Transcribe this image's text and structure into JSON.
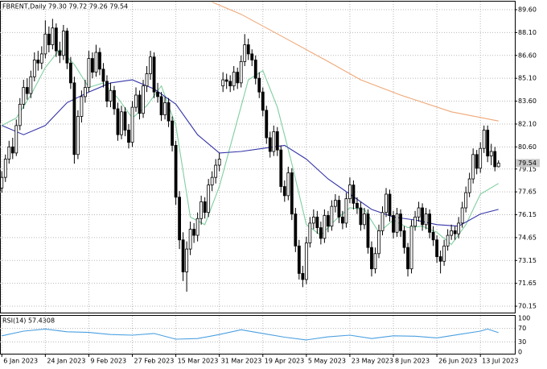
{
  "chart_data": {
    "type": "candlestick",
    "title": "FBRENT,Daily  79.30 79.72 79.26 79.54",
    "ohlc": [
      [
        77.9,
        79.0,
        77.6,
        78.6
      ],
      [
        78.6,
        80.1,
        78.3,
        79.8
      ],
      [
        79.8,
        81.0,
        79.5,
        80.6
      ],
      [
        80.6,
        81.2,
        79.8,
        80.2
      ],
      [
        80.2,
        82.4,
        80.0,
        82.0
      ],
      [
        82.0,
        83.8,
        81.7,
        83.4
      ],
      [
        83.4,
        85.0,
        83.1,
        84.5
      ],
      [
        84.5,
        85.1,
        83.7,
        84.1
      ],
      [
        84.1,
        85.6,
        83.8,
        85.2
      ],
      [
        85.2,
        86.8,
        84.9,
        86.3
      ],
      [
        86.3,
        86.9,
        85.6,
        86.1
      ],
      [
        86.1,
        87.2,
        85.7,
        86.7
      ],
      [
        86.7,
        88.9,
        86.4,
        88.0
      ],
      [
        88.0,
        88.5,
        86.8,
        87.3
      ],
      [
        87.3,
        89.0,
        87.0,
        88.4
      ],
      [
        88.4,
        88.7,
        86.5,
        86.9
      ],
      [
        86.9,
        87.5,
        86.1,
        86.6
      ],
      [
        86.6,
        88.6,
        86.3,
        88.2
      ],
      [
        88.2,
        88.4,
        85.7,
        86.1
      ],
      [
        86.1,
        86.5,
        84.4,
        84.8
      ],
      [
        84.8,
        85.2,
        79.5,
        80.1
      ],
      [
        80.1,
        83.0,
        79.8,
        82.6
      ],
      [
        82.6,
        84.3,
        82.2,
        83.9
      ],
      [
        83.9,
        85.0,
        83.5,
        84.5
      ],
      [
        84.5,
        86.9,
        84.2,
        86.4
      ],
      [
        86.4,
        86.8,
        85.1,
        85.5
      ],
      [
        85.5,
        87.3,
        85.2,
        86.8
      ],
      [
        86.8,
        87.1,
        85.3,
        85.7
      ],
      [
        85.7,
        86.1,
        84.5,
        84.9
      ],
      [
        84.9,
        85.3,
        83.2,
        83.6
      ],
      [
        83.6,
        84.8,
        83.2,
        84.3
      ],
      [
        84.3,
        84.6,
        82.7,
        83.1
      ],
      [
        83.1,
        83.5,
        81.0,
        81.4
      ],
      [
        81.4,
        83.3,
        81.1,
        82.9
      ],
      [
        82.9,
        83.2,
        81.3,
        81.7
      ],
      [
        81.7,
        82.1,
        80.5,
        80.9
      ],
      [
        80.9,
        83.6,
        80.6,
        83.2
      ],
      [
        83.2,
        84.5,
        82.9,
        84.0
      ],
      [
        84.0,
        84.3,
        82.4,
        82.8
      ],
      [
        82.8,
        85.0,
        82.5,
        84.6
      ],
      [
        84.6,
        85.9,
        84.2,
        85.4
      ],
      [
        85.4,
        86.9,
        85.0,
        86.5
      ],
      [
        86.5,
        86.8,
        83.8,
        84.2
      ],
      [
        84.2,
        84.8,
        83.5,
        83.9
      ],
      [
        83.9,
        84.2,
        82.3,
        82.7
      ],
      [
        82.7,
        83.9,
        82.4,
        83.5
      ],
      [
        83.5,
        83.8,
        81.9,
        82.3
      ],
      [
        82.3,
        82.6,
        80.3,
        80.7
      ],
      [
        80.7,
        81.0,
        76.8,
        77.3
      ],
      [
        77.3,
        77.7,
        73.9,
        74.5
      ],
      [
        74.5,
        75.0,
        71.8,
        72.4
      ],
      [
        72.4,
        74.4,
        71.1,
        73.9
      ],
      [
        73.9,
        75.7,
        73.5,
        75.2
      ],
      [
        75.2,
        75.6,
        74.3,
        74.8
      ],
      [
        74.8,
        76.3,
        74.4,
        75.9
      ],
      [
        75.9,
        77.4,
        75.5,
        77.0
      ],
      [
        77.0,
        77.3,
        75.9,
        76.3
      ],
      [
        76.3,
        78.5,
        76.0,
        78.1
      ],
      [
        78.1,
        79.0,
        77.7,
        78.6
      ],
      [
        78.6,
        79.8,
        78.2,
        79.4
      ],
      [
        79.4,
        80.2,
        79.0,
        79.8
      ],
      [
        84.6,
        85.5,
        84.2,
        85.0
      ],
      [
        85.0,
        85.4,
        84.4,
        84.9
      ],
      [
        84.9,
        85.3,
        84.2,
        84.6
      ],
      [
        84.6,
        85.9,
        84.3,
        85.5
      ],
      [
        85.5,
        85.8,
        84.4,
        84.8
      ],
      [
        84.8,
        86.6,
        84.5,
        86.2
      ],
      [
        86.2,
        88.0,
        85.9,
        87.3
      ],
      [
        87.3,
        87.7,
        86.3,
        86.7
      ],
      [
        86.7,
        87.0,
        85.9,
        86.3
      ],
      [
        86.3,
        86.6,
        84.7,
        85.1
      ],
      [
        85.1,
        85.5,
        83.8,
        84.2
      ],
      [
        84.2,
        84.5,
        82.6,
        83.0
      ],
      [
        83.0,
        83.3,
        80.8,
        81.2
      ],
      [
        81.2,
        81.6,
        79.9,
        80.3
      ],
      [
        80.3,
        82.0,
        80.0,
        81.6
      ],
      [
        81.6,
        81.9,
        80.0,
        80.4
      ],
      [
        80.4,
        80.7,
        77.6,
        78.0
      ],
      [
        78.0,
        78.4,
        77.0,
        77.4
      ],
      [
        77.4,
        79.3,
        77.1,
        78.9
      ],
      [
        78.9,
        79.2,
        75.8,
        76.2
      ],
      [
        76.2,
        76.6,
        73.7,
        74.1
      ],
      [
        74.1,
        74.5,
        71.9,
        72.3
      ],
      [
        72.3,
        72.8,
        71.4,
        71.9
      ],
      [
        71.9,
        74.7,
        71.6,
        74.3
      ],
      [
        74.3,
        76.0,
        74.0,
        75.6
      ],
      [
        75.6,
        76.5,
        75.2,
        76.0
      ],
      [
        76.0,
        76.4,
        74.9,
        75.3
      ],
      [
        75.3,
        75.7,
        74.2,
        74.6
      ],
      [
        74.6,
        76.5,
        74.3,
        76.1
      ],
      [
        76.1,
        76.4,
        75.0,
        75.4
      ],
      [
        75.4,
        77.1,
        75.1,
        76.7
      ],
      [
        76.7,
        77.5,
        76.3,
        77.1
      ],
      [
        77.1,
        77.4,
        75.6,
        76.0
      ],
      [
        76.0,
        76.4,
        75.2,
        75.6
      ],
      [
        75.6,
        77.6,
        75.3,
        77.2
      ],
      [
        77.2,
        78.6,
        76.9,
        78.1
      ],
      [
        78.1,
        78.4,
        76.5,
        76.9
      ],
      [
        76.9,
        77.3,
        76.2,
        76.6
      ],
      [
        76.6,
        77.0,
        75.1,
        75.5
      ],
      [
        75.5,
        76.6,
        75.2,
        76.2
      ],
      [
        76.2,
        76.5,
        73.6,
        74.0
      ],
      [
        74.0,
        74.4,
        72.1,
        72.6
      ],
      [
        72.6,
        74.0,
        72.3,
        73.6
      ],
      [
        73.6,
        75.5,
        73.3,
        75.1
      ],
      [
        75.1,
        76.7,
        74.8,
        76.3
      ],
      [
        76.3,
        77.9,
        76.0,
        77.5
      ],
      [
        77.5,
        77.8,
        75.7,
        76.1
      ],
      [
        76.1,
        76.4,
        74.6,
        75.0
      ],
      [
        75.0,
        76.6,
        74.7,
        76.2
      ],
      [
        76.2,
        76.5,
        74.7,
        75.1
      ],
      [
        75.1,
        75.4,
        73.6,
        74.0
      ],
      [
        74.0,
        74.3,
        72.1,
        72.6
      ],
      [
        72.6,
        75.8,
        72.3,
        75.4
      ],
      [
        75.4,
        76.4,
        75.1,
        76.0
      ],
      [
        76.0,
        77.0,
        75.7,
        76.6
      ],
      [
        76.6,
        76.9,
        75.1,
        75.5
      ],
      [
        75.5,
        76.6,
        75.2,
        76.2
      ],
      [
        76.2,
        76.5,
        74.6,
        75.0
      ],
      [
        75.0,
        75.4,
        74.1,
        74.5
      ],
      [
        74.5,
        74.8,
        73.0,
        73.4
      ],
      [
        73.4,
        73.8,
        72.3,
        73.1
      ],
      [
        73.1,
        74.5,
        72.8,
        74.1
      ],
      [
        74.1,
        75.2,
        73.8,
        74.8
      ],
      [
        74.8,
        75.5,
        74.5,
        75.1
      ],
      [
        75.1,
        75.4,
        74.5,
        74.9
      ],
      [
        74.9,
        76.0,
        74.6,
        75.6
      ],
      [
        75.6,
        77.0,
        75.3,
        76.6
      ],
      [
        76.6,
        78.0,
        76.3,
        77.6
      ],
      [
        77.6,
        78.9,
        77.3,
        78.5
      ],
      [
        78.5,
        80.5,
        78.2,
        80.1
      ],
      [
        80.1,
        80.4,
        78.8,
        79.2
      ],
      [
        79.2,
        80.9,
        78.9,
        80.5
      ],
      [
        80.5,
        82.0,
        80.2,
        81.7
      ],
      [
        81.7,
        82.0,
        79.6,
        80.0
      ],
      [
        80.0,
        80.8,
        79.4,
        80.3
      ],
      [
        80.3,
        80.6,
        79.0,
        79.3
      ],
      [
        79.3,
        79.72,
        79.26,
        79.54
      ]
    ],
    "xlim": [
      -0.5,
      141.5
    ],
    "ylim": [
      69.73,
      90.13
    ],
    "yticks": [
      {
        "value": 89.6,
        "label": "89.60"
      },
      {
        "value": 88.1,
        "label": "88.10"
      },
      {
        "value": 86.6,
        "label": "86.60"
      },
      {
        "value": 85.1,
        "label": "85.10"
      },
      {
        "value": 83.6,
        "label": "83.60"
      },
      {
        "value": 82.1,
        "label": "82.10"
      },
      {
        "value": 80.6,
        "label": "80.60"
      },
      79.15,
      77.65,
      76.15,
      74.65,
      73.15,
      71.65,
      70.15
    ],
    "xticks": [
      {
        "value": 0,
        "label": "6 Jan 2023"
      },
      {
        "value": 12,
        "label": "24 Jan 2023"
      },
      {
        "value": 24,
        "label": "9 Feb 2023"
      },
      {
        "value": 36,
        "label": "27 Feb 2023"
      },
      {
        "value": 48,
        "label": "15 Mar 2023"
      },
      {
        "value": 60,
        "label": "31 Mar 2023"
      },
      {
        "value": 72,
        "label": "19 Apr 2023"
      },
      {
        "value": 84,
        "label": "5 May 2023"
      },
      {
        "value": 96,
        "label": "23 May 2023"
      },
      {
        "value": 108,
        "label": "8 Jun 2023"
      },
      {
        "value": 120,
        "label": "26 Jun 2023"
      },
      {
        "value": 132,
        "label": "13 Jul 2023"
      }
    ],
    "grid": true,
    "bull_color": "#ffffff",
    "bear_color": "#000000",
    "overlays": [
      {
        "color": "#7fcfa0",
        "x": [
          0,
          4,
          8,
          12,
          16,
          20,
          24,
          28,
          32,
          36,
          40,
          44,
          48,
          52,
          56,
          60,
          64,
          68,
          72,
          76,
          80,
          84,
          88,
          92,
          96,
          100,
          104,
          108,
          112,
          116,
          120,
          124,
          128,
          132,
          137
        ],
        "values": [
          82.0,
          82.5,
          84.0,
          85.8,
          87.0,
          86.0,
          84.5,
          84.8,
          83.8,
          82.5,
          83.3,
          84.6,
          82.0,
          76.0,
          75.5,
          78.0,
          81.5,
          85.0,
          85.6,
          83.2,
          79.5,
          75.5,
          74.8,
          75.8,
          76.6,
          76.5,
          75.0,
          75.8,
          75.3,
          75.4,
          75.0,
          74.2,
          75.5,
          77.5,
          78.2
        ]
      },
      {
        "color": "#3434a8",
        "x": [
          0,
          6,
          12,
          18,
          24,
          30,
          36,
          42,
          48,
          54,
          60,
          66,
          72,
          78,
          84,
          90,
          96,
          102,
          108,
          114,
          120,
          126,
          132,
          137
        ],
        "values": [
          82.0,
          81.4,
          82.0,
          83.5,
          84.2,
          84.8,
          85.0,
          84.4,
          83.4,
          81.4,
          80.2,
          80.3,
          80.5,
          80.7,
          79.8,
          78.5,
          77.5,
          76.5,
          76.0,
          75.8,
          75.5,
          75.4,
          76.2,
          76.5
        ]
      },
      {
        "color": "#f0a878",
        "x": [
          58,
          66,
          80,
          90,
          99,
          110,
          124,
          137
        ],
        "values": [
          90.1,
          89.3,
          87.5,
          86.2,
          85.0,
          84.0,
          82.9,
          82.3
        ]
      }
    ],
    "rsi": {
      "title": "RSI(14) 57.4308",
      "ylim": [
        0,
        100
      ],
      "yticks": [
        100,
        70,
        30,
        0
      ],
      "color": "#4a9fe0",
      "x": [
        0,
        6,
        12,
        18,
        24,
        30,
        36,
        42,
        48,
        54,
        60,
        66,
        72,
        78,
        84,
        90,
        96,
        102,
        108,
        114,
        120,
        126,
        132,
        134,
        137
      ],
      "values": [
        48,
        62,
        68,
        60,
        58,
        52,
        50,
        55,
        38,
        40,
        52,
        66,
        55,
        44,
        36,
        45,
        50,
        40,
        48,
        47,
        42,
        52,
        62,
        68,
        57.4308
      ]
    }
  }
}
